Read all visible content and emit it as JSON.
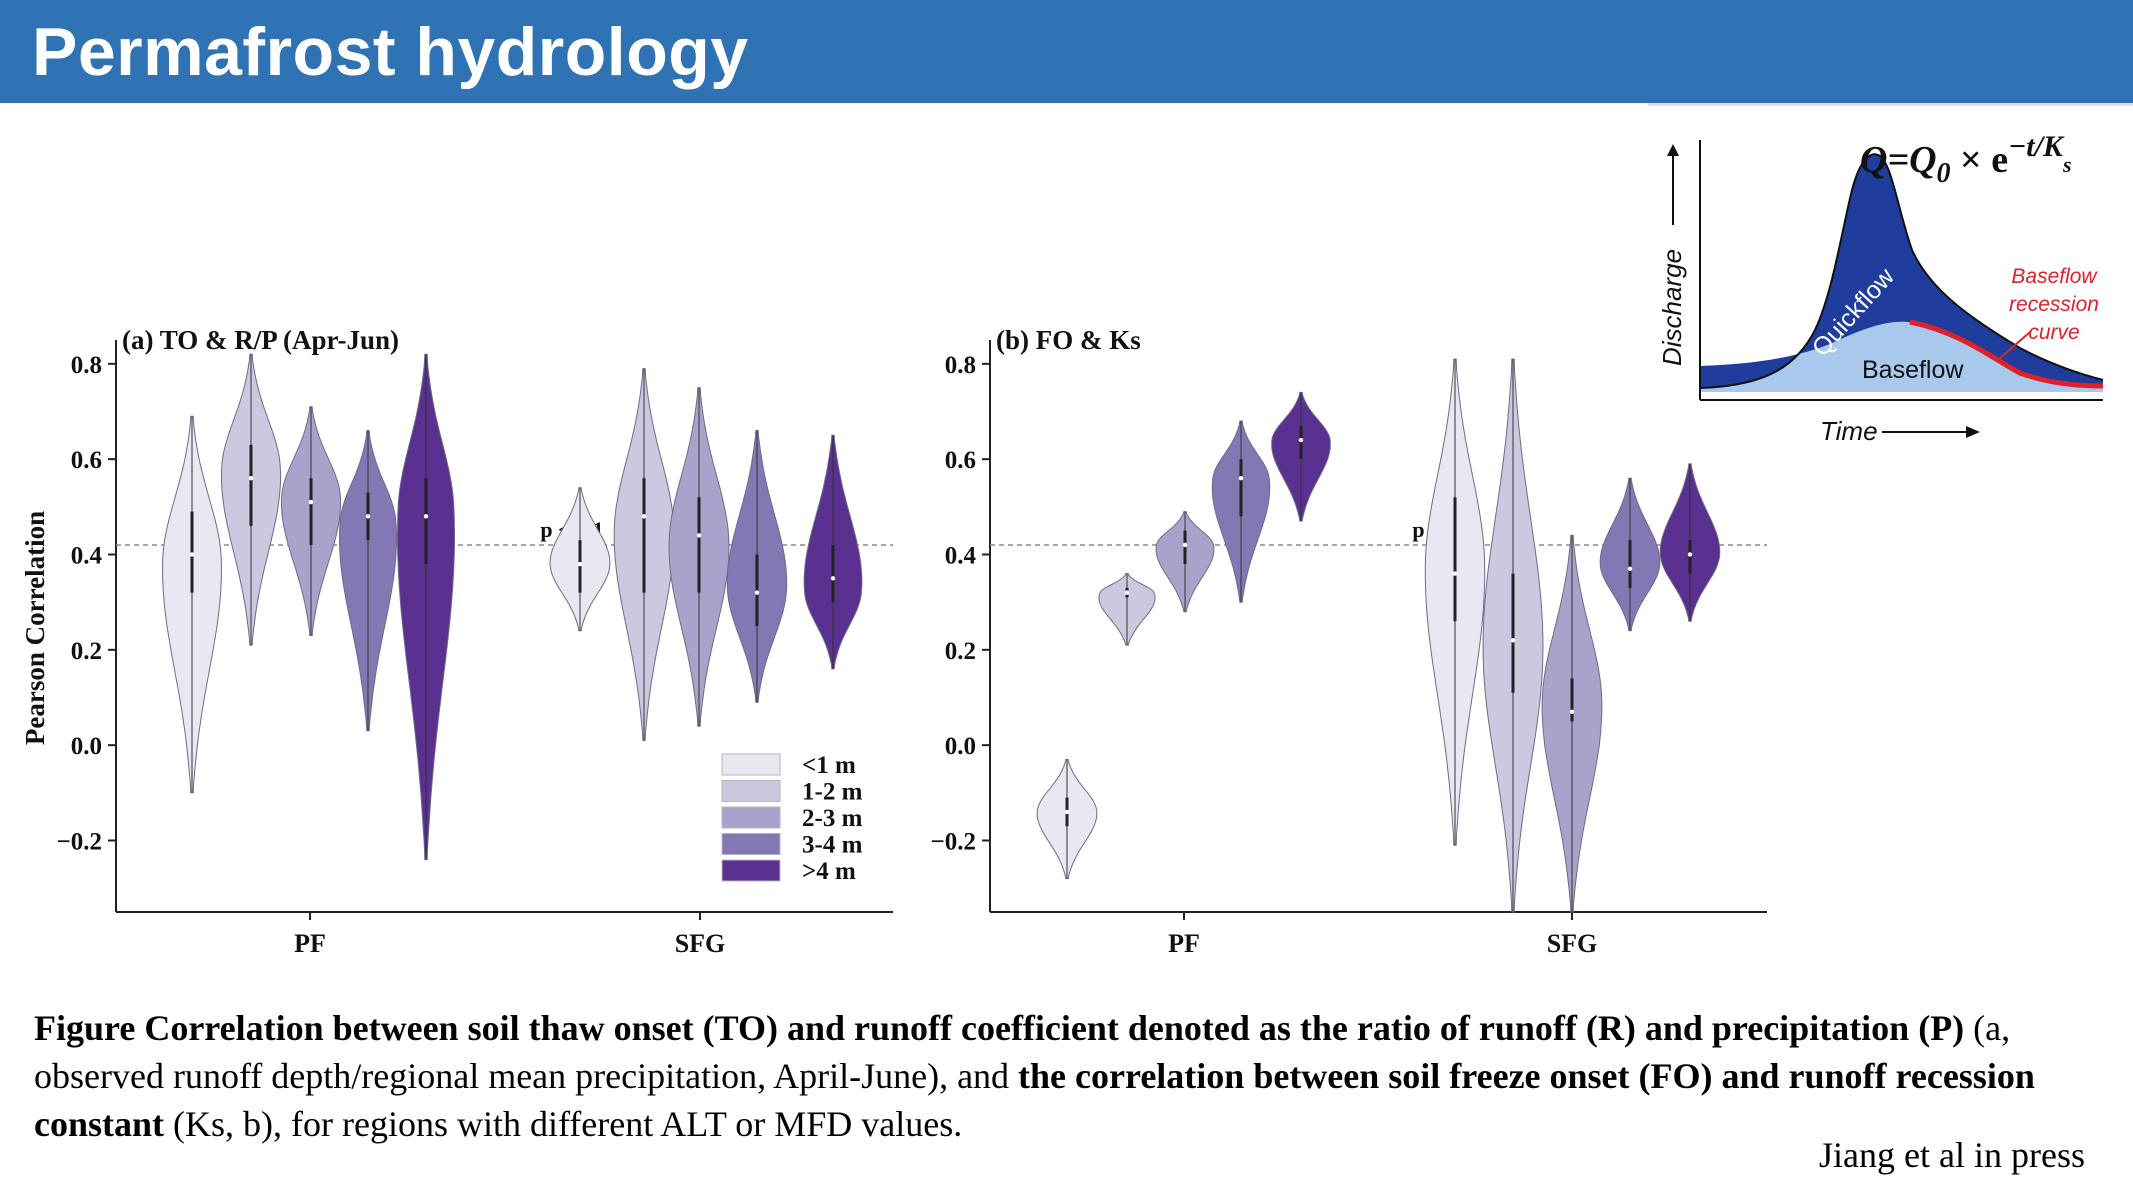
{
  "slide": {
    "title": "Permafrost hydrology",
    "citation": "Jiang et al in press"
  },
  "caption": {
    "p1b": "Figure Correlation between soil thaw onset (TO) and runoff coefficient denoted as the ratio of runoff (R) and precipitation (P)",
    "p2": " (a, observed runoff depth/regional mean precipitation, April-June), and ",
    "p3b": "the correlation between soil freeze onset (FO) and runoff recession constant",
    "p4": " (Ks, b), for regions with different ALT or MFD values."
  },
  "colors": {
    "title_bar": "#2f73b5",
    "class_colors": [
      "#e9e8f2",
      "#cbc8e0",
      "#a9a3cc",
      "#8478b4",
      "#5a3091"
    ],
    "quickflow": "#1f3d9c",
    "baseflow": "#a8c8ec",
    "recession": "#e0202a"
  },
  "chart_data": [
    {
      "id": "a",
      "type": "violin",
      "title": "(a) TO & R/P (Apr-Jun)",
      "ylabel": "Pearson Correlation",
      "ylim": [
        -0.35,
        0.85
      ],
      "yticks": [
        -0.2,
        0.0,
        0.2,
        0.4,
        0.6,
        0.8
      ],
      "ytick_labels": [
        "−0.2",
        "0.0",
        "0.2",
        "0.4",
        "0.6",
        "0.8"
      ],
      "categories": [
        "PF",
        "SFG"
      ],
      "threshold": {
        "value": 0.42,
        "label": "p < 0.1"
      },
      "legend": {
        "position": "lower-right",
        "entries": [
          "<1 m",
          "1-2 m",
          "2-3 m",
          "3-4 m",
          ">4 m"
        ]
      },
      "series": [
        {
          "name": "<1 m",
          "PF": {
            "min": -0.1,
            "max": 0.69,
            "q1": 0.32,
            "median": 0.4,
            "q3": 0.49,
            "peak": 0.39
          },
          "SFG": {
            "min": 0.24,
            "max": 0.54,
            "q1": 0.32,
            "median": 0.38,
            "q3": 0.43,
            "peak": 0.38
          }
        },
        {
          "name": "1-2 m",
          "PF": {
            "min": 0.21,
            "max": 0.82,
            "q1": 0.46,
            "median": 0.56,
            "q3": 0.63,
            "peak": 0.58
          },
          "SFG": {
            "min": 0.01,
            "max": 0.79,
            "q1": 0.32,
            "median": 0.48,
            "q3": 0.56,
            "peak": 0.45
          }
        },
        {
          "name": "2-3 m",
          "PF": {
            "min": 0.23,
            "max": 0.71,
            "q1": 0.42,
            "median": 0.51,
            "q3": 0.56,
            "peak": 0.52
          },
          "SFG": {
            "min": 0.04,
            "max": 0.75,
            "q1": 0.32,
            "median": 0.44,
            "q3": 0.52,
            "peak": 0.42
          }
        },
        {
          "name": "3-4 m",
          "PF": {
            "min": 0.03,
            "max": 0.66,
            "q1": 0.43,
            "median": 0.48,
            "q3": 0.53,
            "peak": 0.47
          },
          "SFG": {
            "min": 0.09,
            "max": 0.66,
            "q1": 0.25,
            "median": 0.32,
            "q3": 0.4,
            "peak": 0.33
          }
        },
        {
          "name": ">4 m",
          "PF": {
            "min": -0.24,
            "max": 0.82,
            "q1": 0.38,
            "median": 0.48,
            "q3": 0.56,
            "peak": 0.5
          },
          "SFG": {
            "min": 0.16,
            "max": 0.65,
            "q1": 0.3,
            "median": 0.35,
            "q3": 0.42,
            "peak": 0.32
          }
        }
      ]
    },
    {
      "id": "b",
      "type": "violin",
      "title": "(b) FO & Ks",
      "ylabel": "",
      "ylim": [
        -0.35,
        0.85
      ],
      "yticks": [
        -0.2,
        0.0,
        0.2,
        0.4,
        0.6,
        0.8
      ],
      "ytick_labels": [
        "−0.2",
        "0.0",
        "0.2",
        "0.4",
        "0.6",
        "0.8"
      ],
      "categories": [
        "PF",
        "SFG"
      ],
      "threshold": {
        "value": 0.42,
        "label": "p < 0.1"
      },
      "series": [
        {
          "name": "<1 m",
          "PF": {
            "min": -0.28,
            "max": -0.03,
            "q1": -0.17,
            "median": -0.14,
            "q3": -0.11,
            "peak": -0.14
          },
          "SFG": {
            "min": -0.21,
            "max": 0.81,
            "q1": 0.26,
            "median": 0.36,
            "q3": 0.52,
            "peak": 0.38
          }
        },
        {
          "name": "1-2 m",
          "PF": {
            "min": 0.21,
            "max": 0.36,
            "q1": 0.31,
            "median": 0.32,
            "q3": 0.33,
            "peak": 0.32
          },
          "SFG": {
            "min": -0.35,
            "max": 0.81,
            "q1": 0.11,
            "median": 0.22,
            "q3": 0.36,
            "peak": 0.2
          }
        },
        {
          "name": "2-3 m",
          "PF": {
            "min": 0.28,
            "max": 0.49,
            "q1": 0.38,
            "median": 0.42,
            "q3": 0.45,
            "peak": 0.42
          },
          "SFG": {
            "min": -0.35,
            "max": 0.44,
            "q1": 0.05,
            "median": 0.07,
            "q3": 0.14,
            "peak": 0.09
          }
        },
        {
          "name": "3-4 m",
          "PF": {
            "min": 0.3,
            "max": 0.68,
            "q1": 0.48,
            "median": 0.56,
            "q3": 0.6,
            "peak": 0.56
          },
          "SFG": {
            "min": 0.24,
            "max": 0.56,
            "q1": 0.33,
            "median": 0.37,
            "q3": 0.43,
            "peak": 0.38
          }
        },
        {
          "name": ">4 m",
          "PF": {
            "min": 0.47,
            "max": 0.74,
            "q1": 0.6,
            "median": 0.64,
            "q3": 0.67,
            "peak": 0.64
          },
          "SFG": {
            "min": 0.26,
            "max": 0.59,
            "q1": 0.36,
            "median": 0.4,
            "q3": 0.43,
            "peak": 0.4
          }
        }
      ]
    }
  ],
  "inset": {
    "equation_main": "Q=Q",
    "equation_sub": "0",
    "equation_times": " × e",
    "equation_sup": "−t/K",
    "equation_sup_sub": "s",
    "ylabel": "Discharge",
    "xlabel": "Time",
    "quickflow_label": "Quickflow",
    "baseflow_label": "Baseflow",
    "recession_label_1": "Baseflow",
    "recession_label_2": "recession",
    "recession_label_3": "curve"
  }
}
